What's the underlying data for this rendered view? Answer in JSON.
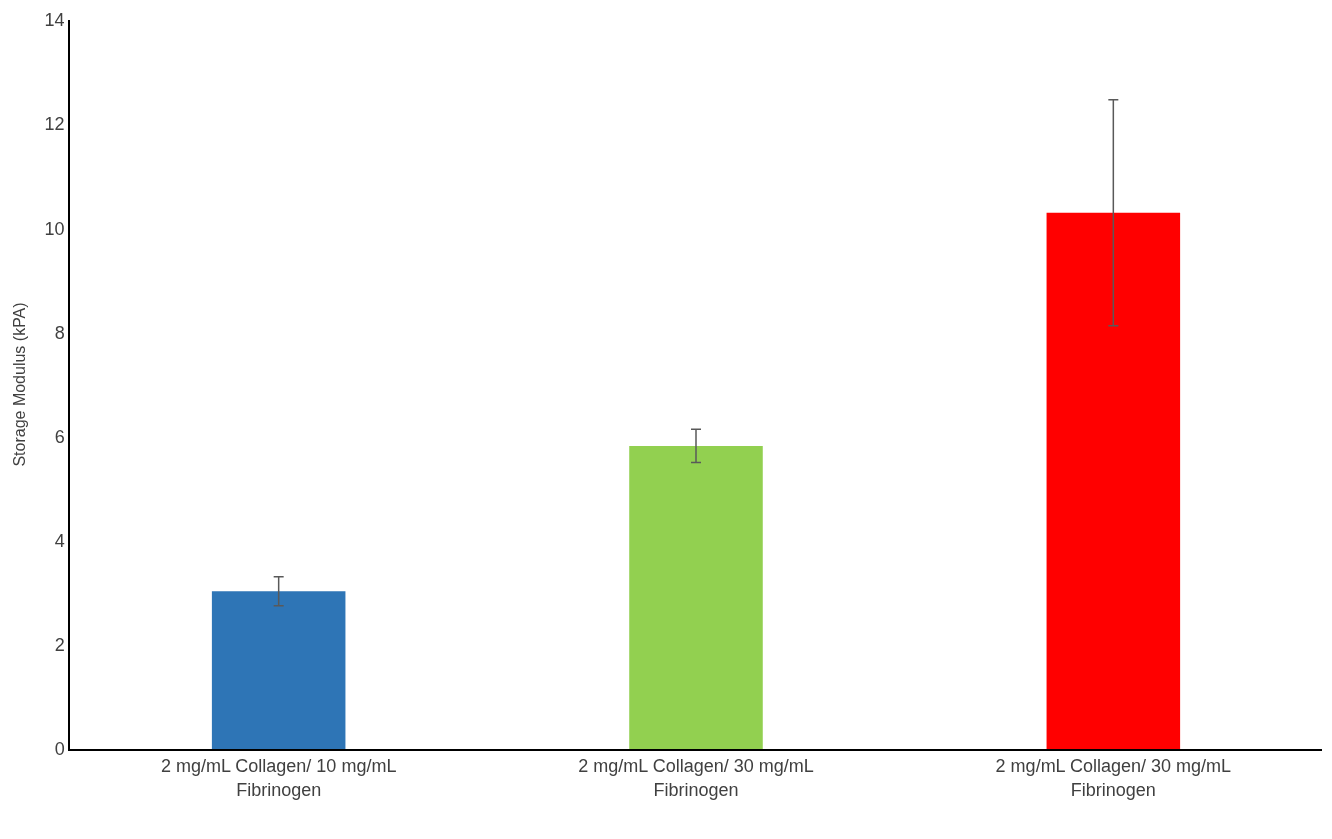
{
  "chart_data": {
    "type": "bar",
    "ylabel": "Storage Modulus (kPA)",
    "categories": [
      "2 mg/mL Collagen/ 10 mg/mL Fibrinogen",
      "2 mg/mL Collagen/ 30 mg/mL Fibrinogen",
      "2 mg/mL Collagen/ 30 mg/mL Fibrinogen"
    ],
    "values": [
      3.03,
      5.82,
      10.3
    ],
    "colors": [
      "#2e75b6",
      "#92d050",
      "#ff0000"
    ],
    "errors": [
      0.28,
      0.32,
      2.17
    ],
    "ylim": [
      0,
      14
    ],
    "yticks": [
      0,
      2,
      4,
      6,
      8,
      10,
      12,
      14
    ]
  }
}
